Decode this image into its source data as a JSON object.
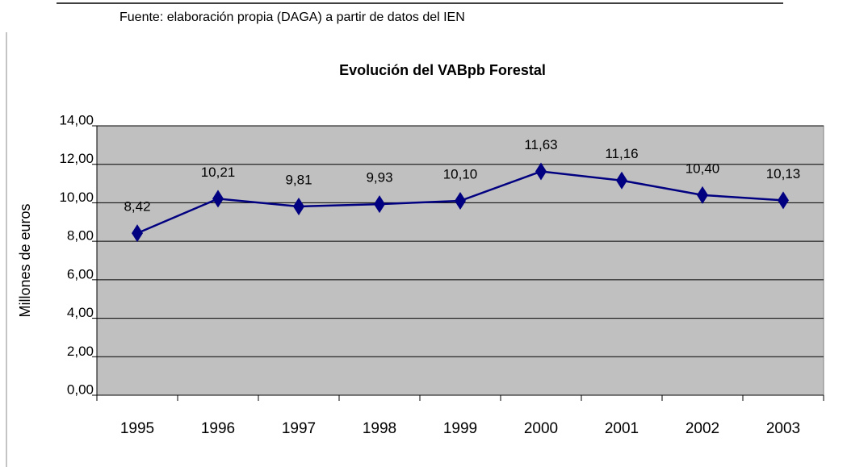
{
  "chart_data": {
    "type": "line",
    "source": "Fuente: elaboración propia (DAGA) a partir de datos del IEN",
    "title": "Evolución del VABpb Forestal",
    "y_label": "Millones de euros",
    "categories": [
      "1995",
      "1996",
      "1997",
      "1998",
      "1999",
      "2000",
      "2001",
      "2002",
      "2003"
    ],
    "series": [
      {
        "name": "VABpb Forestal",
        "color": "#000080",
        "values": [
          8.42,
          10.21,
          9.81,
          9.93,
          10.1,
          11.63,
          11.16,
          10.4,
          10.13
        ],
        "value_labels": [
          "8,42",
          "10,21",
          "9,81",
          "9,93",
          "10,10",
          "11,63",
          "11,16",
          "10,40",
          "10,13"
        ]
      }
    ],
    "ylim": [
      0,
      14
    ],
    "yticks": [
      {
        "value": 0,
        "label": "0,00"
      },
      {
        "value": 2,
        "label": "2,00"
      },
      {
        "value": 4,
        "label": "4,00"
      },
      {
        "value": 6,
        "label": "6,00"
      },
      {
        "value": 8,
        "label": "8,00"
      },
      {
        "value": 10,
        "label": "10,00"
      },
      {
        "value": 12,
        "label": "12,00"
      },
      {
        "value": 14,
        "label": "14,00"
      }
    ],
    "grid": true,
    "plot_background": "#c0c0c0"
  }
}
